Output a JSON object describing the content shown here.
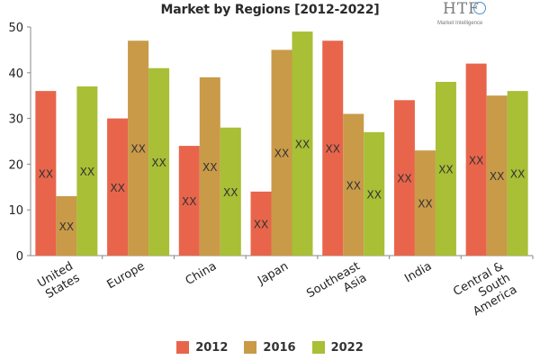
{
  "title": "Market by Regions [2012-2022]",
  "logo": {
    "brand": "HTF",
    "tagline": "Market Intelligence"
  },
  "colors": {
    "2012": "#e8654b",
    "2016": "#c99a48",
    "2022": "#a8bf36"
  },
  "chart_data": {
    "type": "bar",
    "title": "Market by Regions [2012-2022]",
    "categories": [
      [
        "United",
        "States"
      ],
      [
        "Europe"
      ],
      [
        "China"
      ],
      [
        "Japan"
      ],
      [
        "Southeast",
        "Asia"
      ],
      [
        "India"
      ],
      [
        "Central &",
        "South",
        "America"
      ]
    ],
    "series": [
      {
        "name": "2012",
        "values": [
          36,
          30,
          24,
          14,
          47,
          34,
          42
        ]
      },
      {
        "name": "2016",
        "values": [
          13,
          47,
          39,
          45,
          31,
          23,
          35
        ]
      },
      {
        "name": "2022",
        "values": [
          37,
          41,
          28,
          49,
          27,
          38,
          36
        ]
      }
    ],
    "data_label": "XX",
    "ylim": [
      0,
      50
    ],
    "yticks": [
      0,
      10,
      20,
      30,
      40,
      50
    ],
    "grid": false,
    "legend_position": "bottom"
  }
}
